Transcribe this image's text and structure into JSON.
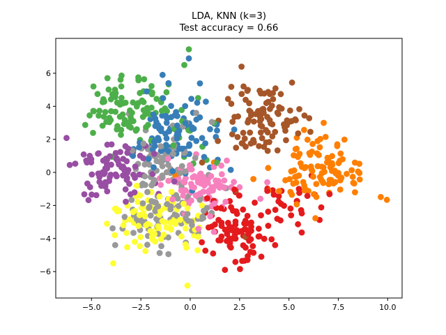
{
  "figure": {
    "background": "#ffffff",
    "test_accuracy": "0.66"
  },
  "chart_data": {
    "type": "scatter",
    "title_line1": "LDA, KNN (k=3)",
    "title_line2": "Test accuracy = 0.66",
    "title": "LDA, KNN (k=3)\nTest accuracy = 0.66",
    "xlabel": "",
    "ylabel": "",
    "grid": false,
    "legend": null,
    "xlim": [
      -6.81,
      10.73
    ],
    "ylim": [
      -7.6,
      8.11
    ],
    "xticks": {
      "values": [
        -5.0,
        -2.5,
        0.0,
        2.5,
        5.0,
        7.5,
        10.0
      ],
      "labels": [
        "−5.0",
        "−2.5",
        "0.0",
        "2.5",
        "5.0",
        "7.5",
        "10.0"
      ]
    },
    "yticks": {
      "values": [
        -6,
        -4,
        -2,
        0,
        2,
        4,
        6
      ],
      "labels": [
        "−6",
        "−4",
        "−2",
        "0",
        "2",
        "4",
        "6"
      ]
    },
    "marker_radius_px": 4.4,
    "axis_color": "#000000",
    "series": [
      {
        "name": "cluster-green",
        "color": "#4daf4a",
        "blobs": [
          {
            "cx": -3.2,
            "cy": 3.9,
            "sx": 1.15,
            "sy": 0.9,
            "n": 95
          },
          {
            "cx": -0.2,
            "cy": 1.3,
            "sx": 0.9,
            "sy": 1.1,
            "n": 10
          }
        ],
        "outliers": [
          [
            -0.07,
            7.45
          ],
          [
            -0.3,
            6.5
          ],
          [
            -4.9,
            5.2
          ],
          [
            0.4,
            4.5
          ],
          [
            1.2,
            3.0
          ]
        ]
      },
      {
        "name": "cluster-blue",
        "color": "#377eb8",
        "blobs": [
          {
            "cx": -0.7,
            "cy": 2.5,
            "sx": 1.05,
            "sy": 1.0,
            "n": 95
          }
        ],
        "outliers": [
          [
            -0.07,
            6.9
          ],
          [
            -1.4,
            5.9
          ],
          [
            -1.1,
            5.4
          ],
          [
            -2.2,
            4.9
          ],
          [
            0.1,
            -1.1
          ],
          [
            1.0,
            0.3
          ],
          [
            -2.9,
            1.0
          ]
        ]
      },
      {
        "name": "cluster-brown",
        "color": "#a65628",
        "blobs": [
          {
            "cx": 3.7,
            "cy": 3.2,
            "sx": 1.05,
            "sy": 1.0,
            "n": 95
          }
        ],
        "outliers": [
          [
            2.6,
            6.4
          ],
          [
            2.7,
            5.2
          ],
          [
            0.6,
            0.6
          ],
          [
            2.3,
            -1.1
          ],
          [
            2.8,
            -3.9
          ],
          [
            1.4,
            1.9
          ]
        ]
      },
      {
        "name": "cluster-orange",
        "color": "#ff7f00",
        "blobs": [
          {
            "cx": 6.4,
            "cy": 0.0,
            "sx": 1.15,
            "sy": 0.95,
            "n": 100
          }
        ],
        "outliers": [
          [
            9.96,
            -1.66
          ],
          [
            9.65,
            -1.49
          ],
          [
            6.76,
            3.0
          ],
          [
            1.2,
            0.6
          ],
          [
            -0.75,
            -0.2
          ],
          [
            3.2,
            -0.4
          ]
        ]
      },
      {
        "name": "cluster-red",
        "color": "#e41a1c",
        "blobs": [
          {
            "cx": 2.3,
            "cy": -3.4,
            "sx": 0.85,
            "sy": 0.9,
            "n": 85
          },
          {
            "cx": 4.9,
            "cy": -2.2,
            "sx": 1.05,
            "sy": 1.0,
            "n": 30
          }
        ],
        "outliers": [
          [
            1.76,
            -5.9
          ],
          [
            2.9,
            -5.3
          ],
          [
            3.6,
            -5.1
          ],
          [
            4.3,
            -4.4
          ]
        ]
      },
      {
        "name": "cluster-purple",
        "color": "#984ea3",
        "blobs": [
          {
            "cx": -3.9,
            "cy": 0.3,
            "sx": 0.95,
            "sy": 0.9,
            "n": 90
          }
        ],
        "outliers": [
          [
            -6.1,
            0.45
          ],
          [
            -0.8,
            -0.55
          ],
          [
            -1.6,
            -1.3
          ]
        ]
      },
      {
        "name": "cluster-pink",
        "color": "#f781bf",
        "blobs": [
          {
            "cx": 0.5,
            "cy": -0.9,
            "sx": 0.9,
            "sy": 0.8,
            "n": 85
          }
        ],
        "outliers": [
          [
            2.5,
            -0.9
          ],
          [
            2.5,
            -1.4
          ],
          [
            0.3,
            1.1
          ],
          [
            1.2,
            -3.6
          ],
          [
            -1.4,
            -0.3
          ],
          [
            3.9,
            -0.6
          ]
        ]
      },
      {
        "name": "cluster-gray",
        "color": "#999999",
        "blobs": [
          {
            "cx": -1.3,
            "cy": 0.9,
            "sx": 0.95,
            "sy": 1.0,
            "n": 60
          },
          {
            "cx": -1.2,
            "cy": -2.5,
            "sx": 1.15,
            "sy": 1.0,
            "n": 85
          }
        ],
        "outliers": [
          [
            -3.8,
            -4.4
          ],
          [
            -3.1,
            3.55
          ],
          [
            1.1,
            3.05
          ],
          [
            0.3,
            3.6
          ]
        ]
      },
      {
        "name": "cluster-yellow",
        "color": "#ffff33",
        "blobs": [
          {
            "cx": -1.7,
            "cy": -2.9,
            "sx": 1.05,
            "sy": 0.95,
            "n": 90
          }
        ],
        "outliers": [
          [
            -0.14,
            -6.85
          ],
          [
            -3.9,
            -5.5
          ],
          [
            -1.1,
            -0.5
          ],
          [
            0.6,
            -2.0
          ]
        ]
      }
    ]
  }
}
